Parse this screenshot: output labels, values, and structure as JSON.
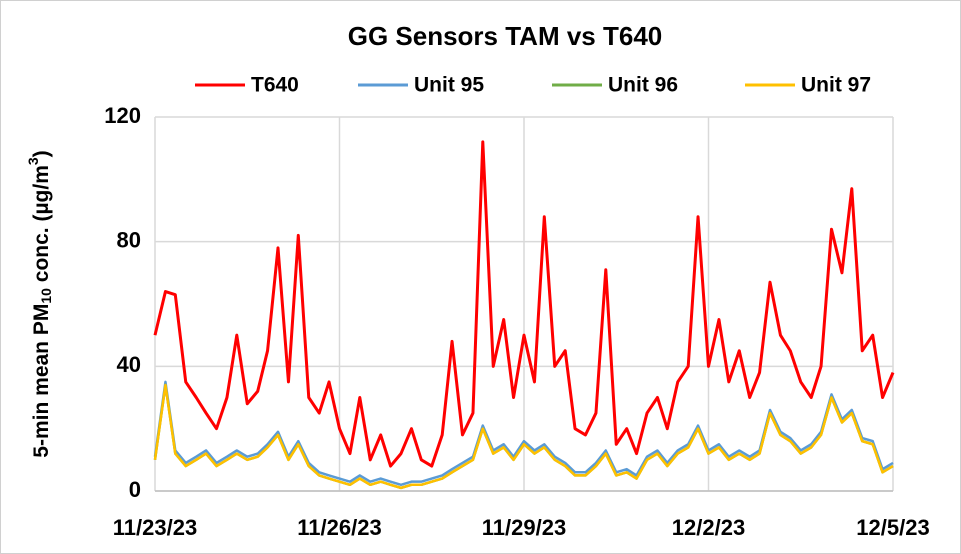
{
  "chart_data": {
    "type": "line",
    "title": "GG Sensors TAM vs T640",
    "ylabel": {
      "prefix": "5-min mean PM",
      "sub": "10",
      "mid": " conc. (µg/m",
      "sup": "3",
      "suffix": ")"
    },
    "x": [
      0,
      0.17,
      0.33,
      0.5,
      0.67,
      0.83,
      1,
      1.17,
      1.33,
      1.5,
      1.67,
      1.83,
      2,
      2.17,
      2.33,
      2.5,
      2.67,
      2.83,
      3,
      3.17,
      3.33,
      3.5,
      3.67,
      3.83,
      4,
      4.17,
      4.33,
      4.5,
      4.67,
      4.83,
      5,
      5.17,
      5.33,
      5.5,
      5.67,
      5.83,
      6,
      6.17,
      6.33,
      6.5,
      6.67,
      6.83,
      7,
      7.17,
      7.33,
      7.5,
      7.67,
      7.83,
      8,
      8.17,
      8.33,
      8.5,
      8.67,
      8.83,
      9,
      9.17,
      9.33,
      9.5,
      9.67,
      9.83,
      10,
      10.17,
      10.33,
      10.5,
      10.67,
      10.83,
      11,
      11.17,
      11.33,
      11.5,
      11.67,
      11.83,
      12
    ],
    "series": [
      {
        "name": "T640",
        "color": "#ff0000",
        "values": [
          50,
          64,
          63,
          35,
          30,
          25,
          20,
          30,
          50,
          28,
          32,
          45,
          78,
          35,
          82,
          30,
          25,
          35,
          20,
          12,
          30,
          10,
          18,
          8,
          12,
          20,
          10,
          8,
          18,
          48,
          18,
          25,
          112,
          40,
          55,
          30,
          50,
          35,
          88,
          40,
          45,
          20,
          18,
          25,
          71,
          15,
          20,
          12,
          25,
          30,
          20,
          35,
          40,
          88,
          40,
          55,
          35,
          45,
          30,
          38,
          67,
          50,
          45,
          35,
          30,
          40,
          84,
          70,
          97,
          45,
          50,
          30,
          38
        ]
      },
      {
        "name": "Unit 95",
        "color": "#5b9bd5",
        "values": [
          11,
          35,
          13,
          9,
          11,
          13,
          9,
          11,
          13,
          11,
          12,
          15,
          19,
          11,
          16,
          9,
          6,
          5,
          4,
          3,
          5,
          3,
          4,
          3,
          2,
          3,
          3,
          4,
          5,
          7,
          9,
          11,
          21,
          13,
          15,
          11,
          16,
          13,
          15,
          11,
          9,
          6,
          6,
          9,
          13,
          6,
          7,
          5,
          11,
          13,
          9,
          13,
          15,
          21,
          13,
          15,
          11,
          13,
          11,
          13,
          26,
          19,
          17,
          13,
          15,
          19,
          31,
          23,
          26,
          17,
          16,
          7,
          9
        ]
      },
      {
        "name": "Unit 96",
        "color": "#70ad47",
        "values": [
          10,
          34,
          12,
          8,
          10,
          12,
          8,
          10,
          12,
          10,
          11,
          14,
          18,
          10,
          15,
          8,
          5,
          4,
          3,
          2,
          4,
          2,
          3,
          2,
          1,
          2,
          2,
          3,
          4,
          6,
          8,
          10,
          20,
          12,
          14,
          10,
          15,
          12,
          14,
          10,
          8,
          5,
          5,
          8,
          12,
          5,
          6,
          4,
          10,
          12,
          8,
          12,
          14,
          20,
          12,
          14,
          10,
          12,
          10,
          12,
          25,
          18,
          16,
          12,
          14,
          18,
          30,
          22,
          25,
          16,
          15,
          6,
          8
        ]
      },
      {
        "name": "Unit 97",
        "color": "#ffc000",
        "values": [
          10,
          34,
          12,
          8,
          10,
          12,
          8,
          10,
          12,
          10,
          11,
          14,
          18,
          10,
          15,
          8,
          5,
          4,
          3,
          2,
          4,
          2,
          3,
          2,
          1,
          2,
          2,
          3,
          4,
          6,
          8,
          10,
          20,
          12,
          14,
          10,
          15,
          12,
          14,
          10,
          8,
          5,
          5,
          8,
          12,
          5,
          6,
          4,
          10,
          12,
          8,
          12,
          14,
          20,
          12,
          14,
          10,
          12,
          10,
          12,
          25,
          18,
          16,
          12,
          14,
          18,
          30,
          22,
          25,
          16,
          15,
          6,
          8
        ]
      }
    ],
    "xlim": [
      0,
      12
    ],
    "xticks": [
      {
        "value": 0,
        "label": "11/23/23"
      },
      {
        "value": 3,
        "label": "11/26/23"
      },
      {
        "value": 6,
        "label": "11/29/23"
      },
      {
        "value": 9,
        "label": "12/2/23"
      },
      {
        "value": 12,
        "label": "12/5/23"
      }
    ],
    "ylim": [
      0,
      120
    ],
    "yticks": [
      0,
      40,
      80,
      120
    ],
    "grid": true,
    "legend": "top"
  }
}
